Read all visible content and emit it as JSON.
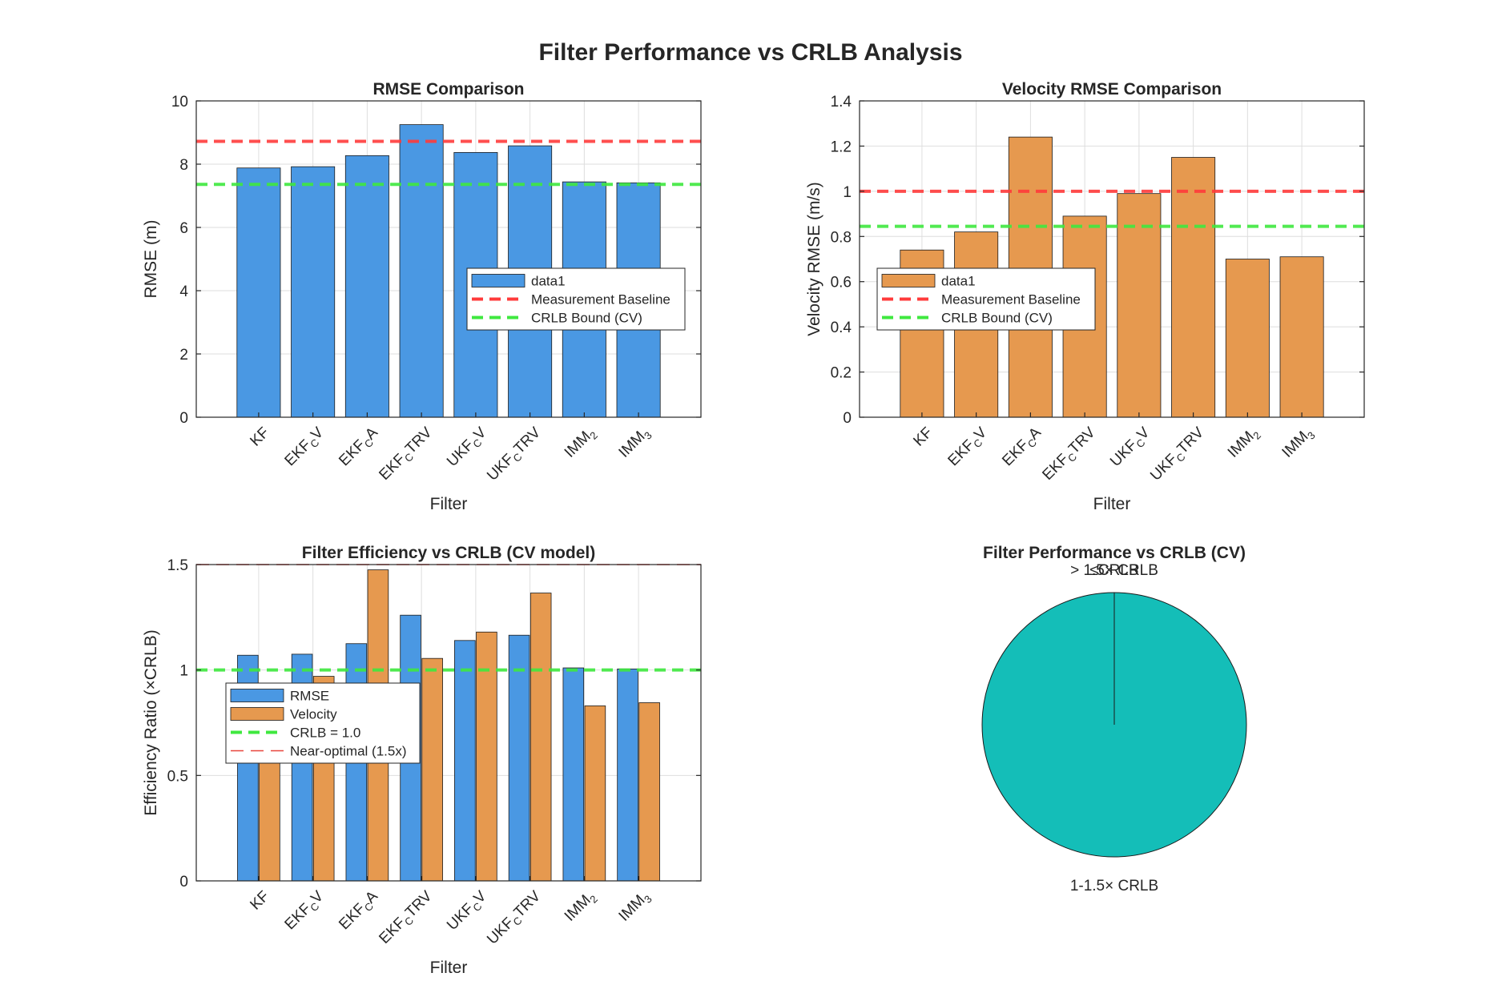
{
  "figure": {
    "suptitle": "Filter Performance vs CRLB Analysis"
  },
  "colors": {
    "rmse_bar": "#4a98e3",
    "velocity_bar": "#e6994f",
    "baseline_line": "#ff3b3b",
    "crlb_line": "#3fe83f",
    "near_optimal_line": "#e8453c",
    "pie_slice": "#14beb8",
    "grid": "#dedede",
    "axis": "#262626"
  },
  "chart_data": [
    {
      "id": "rmse",
      "type": "bar",
      "title": "RMSE Comparison",
      "xlabel": "Filter",
      "ylabel": "RMSE (m)",
      "categories": [
        {
          "base": "KF",
          "sub": "",
          "rest": ""
        },
        {
          "base": "EKF",
          "sub": "C",
          "rest": "V"
        },
        {
          "base": "EKF",
          "sub": "C",
          "rest": "A"
        },
        {
          "base": "EKF",
          "sub": "C",
          "rest": "TRV"
        },
        {
          "base": "UKF",
          "sub": "C",
          "rest": "V"
        },
        {
          "base": "UKF",
          "sub": "C",
          "rest": "TRV"
        },
        {
          "base": "IMM",
          "sub": "2",
          "rest": ""
        },
        {
          "base": "IMM",
          "sub": "3",
          "rest": ""
        }
      ],
      "series": [
        {
          "name": "data1",
          "color_key": "rmse_bar",
          "values": [
            7.88,
            7.92,
            8.27,
            9.25,
            8.37,
            8.58,
            7.44,
            7.41
          ]
        }
      ],
      "hlines": [
        {
          "name": "Measurement Baseline",
          "value": 8.72,
          "color_key": "baseline_line",
          "style": "dashed"
        },
        {
          "name": "CRLB Bound (CV)",
          "value": 7.36,
          "color_key": "crlb_line",
          "style": "dashed"
        }
      ],
      "ylim": [
        0,
        10
      ],
      "yticks": [
        0,
        2,
        4,
        6,
        8,
        10
      ],
      "ytick_labels": [
        "0",
        "2",
        "4",
        "6",
        "8",
        "10"
      ],
      "grid": true,
      "legend": {
        "placement": "center-right",
        "entries": [
          "data1",
          "Measurement Baseline",
          "CRLB Bound (CV)"
        ]
      }
    },
    {
      "id": "velocity",
      "type": "bar",
      "title": "Velocity RMSE Comparison",
      "xlabel": "Filter",
      "ylabel": "Velocity RMSE (m/s)",
      "categories": [
        {
          "base": "KF",
          "sub": "",
          "rest": ""
        },
        {
          "base": "EKF",
          "sub": "C",
          "rest": "V"
        },
        {
          "base": "EKF",
          "sub": "C",
          "rest": "A"
        },
        {
          "base": "EKF",
          "sub": "C",
          "rest": "TRV"
        },
        {
          "base": "UKF",
          "sub": "C",
          "rest": "V"
        },
        {
          "base": "UKF",
          "sub": "C",
          "rest": "TRV"
        },
        {
          "base": "IMM",
          "sub": "2",
          "rest": ""
        },
        {
          "base": "IMM",
          "sub": "3",
          "rest": ""
        }
      ],
      "series": [
        {
          "name": "data1",
          "color_key": "velocity_bar",
          "values": [
            0.74,
            0.82,
            1.24,
            0.89,
            0.99,
            1.15,
            0.7,
            0.71
          ]
        }
      ],
      "hlines": [
        {
          "name": "Measurement Baseline",
          "value": 1.0,
          "color_key": "baseline_line",
          "style": "dashed"
        },
        {
          "name": "CRLB Bound (CV)",
          "value": 0.845,
          "color_key": "crlb_line",
          "style": "dashed"
        }
      ],
      "ylim": [
        0,
        1.4
      ],
      "yticks": [
        0,
        0.2,
        0.4,
        0.6,
        0.8,
        1,
        1.2,
        1.4
      ],
      "ytick_labels": [
        "0",
        "0.2",
        "0.4",
        "0.6",
        "0.8",
        "1",
        "1.2",
        "1.4"
      ],
      "grid": true,
      "legend": {
        "placement": "center-left",
        "entries": [
          "data1",
          "Measurement Baseline",
          "CRLB Bound (CV)"
        ]
      }
    },
    {
      "id": "efficiency",
      "type": "bar",
      "title": "Filter Efficiency vs CRLB (CV model)",
      "xlabel": "Filter",
      "ylabel": "Efficiency Ratio (×CRLB)",
      "categories": [
        {
          "base": "KF",
          "sub": "",
          "rest": ""
        },
        {
          "base": "EKF",
          "sub": "C",
          "rest": "V"
        },
        {
          "base": "EKF",
          "sub": "C",
          "rest": "A"
        },
        {
          "base": "EKF",
          "sub": "C",
          "rest": "TRV"
        },
        {
          "base": "UKF",
          "sub": "C",
          "rest": "V"
        },
        {
          "base": "UKF",
          "sub": "C",
          "rest": "TRV"
        },
        {
          "base": "IMM",
          "sub": "2",
          "rest": ""
        },
        {
          "base": "IMM",
          "sub": "3",
          "rest": ""
        }
      ],
      "series": [
        {
          "name": "RMSE",
          "color_key": "rmse_bar",
          "values": [
            1.07,
            1.075,
            1.125,
            1.26,
            1.14,
            1.165,
            1.01,
            1.005
          ]
        },
        {
          "name": "Velocity",
          "color_key": "velocity_bar",
          "values": [
            0.875,
            0.97,
            1.475,
            1.055,
            1.18,
            1.365,
            0.83,
            0.845
          ]
        }
      ],
      "hlines": [
        {
          "name": "CRLB = 1.0",
          "value": 1.0,
          "color_key": "crlb_line",
          "style": "dashed"
        },
        {
          "name": "Near-optimal (1.5x)",
          "value": 1.5,
          "color_key": "near_optimal_line",
          "style": "thin-dashed"
        }
      ],
      "ylim": [
        0,
        1.5
      ],
      "yticks": [
        0,
        0.5,
        1,
        1.5
      ],
      "ytick_labels": [
        "0",
        "0.5",
        "1",
        "1.5"
      ],
      "grid": true,
      "legend": {
        "placement": "center-left",
        "entries": [
          "RMSE",
          "Velocity",
          "CRLB = 1.0",
          "Near-optimal (1.5x)"
        ]
      }
    },
    {
      "id": "pie",
      "type": "pie",
      "title": "Filter Performance vs CRLB (CV)",
      "slices": [
        {
          "label": "≤CRLB",
          "value": 0,
          "color_key": "pie_slice"
        },
        {
          "label": "1-1.5× CRLB",
          "value": 8,
          "color_key": "pie_slice"
        },
        {
          "label": "> 1.5× CRLB",
          "value": 0,
          "color_key": "pie_slice"
        }
      ]
    }
  ]
}
